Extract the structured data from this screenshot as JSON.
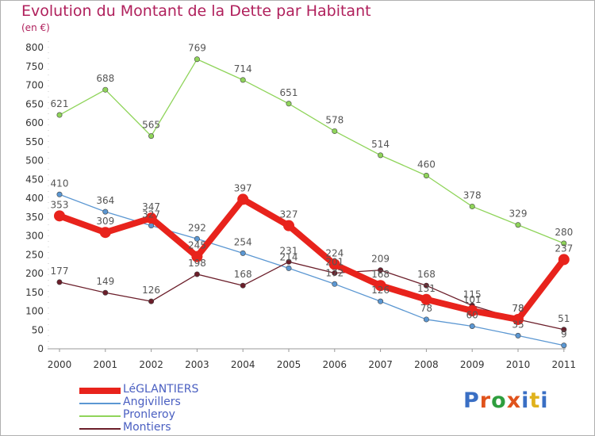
{
  "title": "Evolution du Montant de la Dette par Habitant",
  "unit_label": "(en €)",
  "logo": {
    "text": "Proxiti",
    "colors": [
      "#3a6fc4",
      "#e0531c",
      "#2e9e3e",
      "#e0531c",
      "#3a6fc4",
      "#e0b21c",
      "#3a6fc4"
    ]
  },
  "chart_data": {
    "type": "line",
    "x": [
      "2000",
      "2001",
      "2002",
      "2003",
      "2004",
      "2005",
      "2006",
      "2007",
      "2008",
      "2009",
      "2010",
      "2011"
    ],
    "ylim": [
      0,
      800
    ],
    "yticks": [
      0,
      50,
      100,
      150,
      200,
      250,
      300,
      350,
      400,
      450,
      500,
      550,
      600,
      650,
      700,
      750,
      800
    ],
    "grid": false,
    "legend_position": "bottom-left",
    "series": [
      {
        "name": "LéGLANTIERS",
        "color": "#e8231c",
        "values": [
          353,
          309,
          347,
          245,
          397,
          327,
          224,
          168,
          131,
          101,
          78,
          237
        ],
        "labels": [
          "353",
          "309",
          "347",
          "245",
          "397",
          "327",
          "224",
          "168",
          "131",
          "101",
          "78",
          "237"
        ]
      },
      {
        "name": "Angivillers",
        "color": "#5b97d2",
        "values": [
          410,
          364,
          327,
          292,
          254,
          214,
          172,
          126,
          78,
          60,
          35,
          9
        ],
        "labels": [
          "410",
          "364",
          "327",
          "292",
          "254",
          "214",
          "172",
          "126",
          "78",
          "60",
          "35",
          "9"
        ]
      },
      {
        "name": "Pronleroy",
        "color": "#8fd45a",
        "values": [
          621,
          688,
          565,
          769,
          714,
          651,
          578,
          514,
          460,
          378,
          329,
          280
        ],
        "labels": [
          "621",
          "688",
          "565",
          "769",
          "714",
          "651",
          "578",
          "514",
          "460",
          "378",
          "329",
          "280"
        ]
      },
      {
        "name": "Montiers",
        "color": "#6b1e2a",
        "values": [
          177,
          149,
          126,
          198,
          168,
          231,
          201,
          209,
          168,
          115,
          78,
          51
        ],
        "labels": [
          "177",
          "149",
          "126",
          "198",
          "168",
          "231",
          "201",
          "209",
          "168",
          "115",
          "78",
          "51"
        ]
      }
    ]
  }
}
